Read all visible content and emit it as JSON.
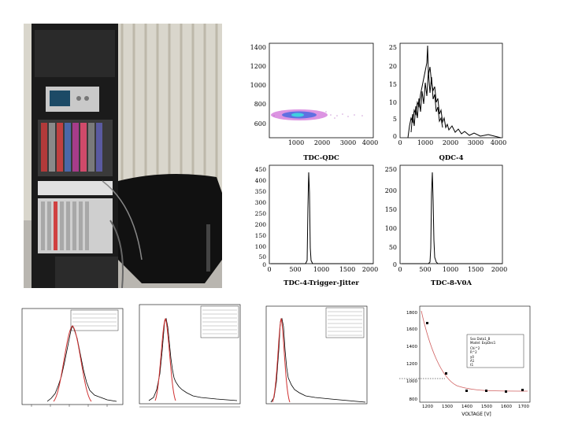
{
  "slide": {
    "photo": {
      "description_icon": "rack-photo"
    },
    "plots": [
      {
        "id": "tdc-qdc",
        "title": "TDC-QDC",
        "type": "scatter",
        "y_ticks": [
          "1400",
          "1200",
          "1000",
          "800",
          "600"
        ],
        "x_ticks": [
          "1000",
          "2000",
          "3000",
          "4000"
        ]
      },
      {
        "id": "qdc-4",
        "title": "QDC-4",
        "type": "histogram",
        "y_ticks": [
          "25",
          "20",
          "15",
          "10",
          "5",
          "0"
        ],
        "x_ticks": [
          "0",
          "1000",
          "2000",
          "3000",
          "4000"
        ]
      },
      {
        "id": "tdc4-trigger-jitter",
        "title": "TDC-4-Trigger-Jitter",
        "type": "histogram",
        "y_ticks": [
          "450",
          "400",
          "350",
          "300",
          "250",
          "200",
          "150",
          "100",
          "50",
          "0"
        ],
        "x_ticks": [
          "0",
          "500",
          "1000",
          "1500",
          "2000"
        ]
      },
      {
        "id": "tdc8-v0a",
        "title": "TDC-8-V0A",
        "type": "histogram",
        "y_ticks": [
          "250",
          "200",
          "150",
          "100",
          "50",
          "0"
        ],
        "x_ticks": [
          "0",
          "500",
          "1000",
          "1500",
          "2000"
        ]
      }
    ],
    "voltage_plot": {
      "xlabel": "VOLTAGE [V]",
      "x_ticks": [
        "1200",
        "1300",
        "1400",
        "1500",
        "1600",
        "1700"
      ],
      "y_ticks": [
        "1800",
        "1600",
        "1400",
        "1200",
        "1000",
        "800"
      ],
      "legend_lines": [
        "Sxx Data1_B",
        "Model: ExpDec1",
        "Chi^2",
        "R^2",
        "y0",
        "A1",
        "t1"
      ]
    }
  },
  "chart_data": [
    {
      "type": "scatter",
      "title": "TDC-QDC",
      "xlim": [
        0,
        4000
      ],
      "ylim": [
        500,
        1500
      ]
    },
    {
      "type": "bar",
      "title": "QDC-4",
      "xlim": [
        0,
        4000
      ],
      "ylim": [
        0,
        27
      ],
      "peak": {
        "x": 1100,
        "y": 25
      }
    },
    {
      "type": "bar",
      "title": "TDC-4-Trigger-Jitter",
      "xlim": [
        0,
        2000
      ],
      "ylim": [
        0,
        460
      ],
      "peak": {
        "x": 780,
        "y": 430
      }
    },
    {
      "type": "bar",
      "title": "TDC-8-V0A",
      "xlim": [
        0,
        2000
      ],
      "ylim": [
        0,
        260
      ],
      "peak": {
        "x": 700,
        "y": 240
      }
    },
    {
      "type": "scatter",
      "xlabel": "VOLTAGE [V]",
      "xlim": [
        1150,
        1750
      ],
      "ylim": [
        800,
        1850
      ],
      "x": [
        1250,
        1320,
        1400,
        1500,
        1600,
        1700
      ],
      "y": [
        1640,
        1150,
        880,
        870,
        860,
        880
      ]
    }
  ]
}
